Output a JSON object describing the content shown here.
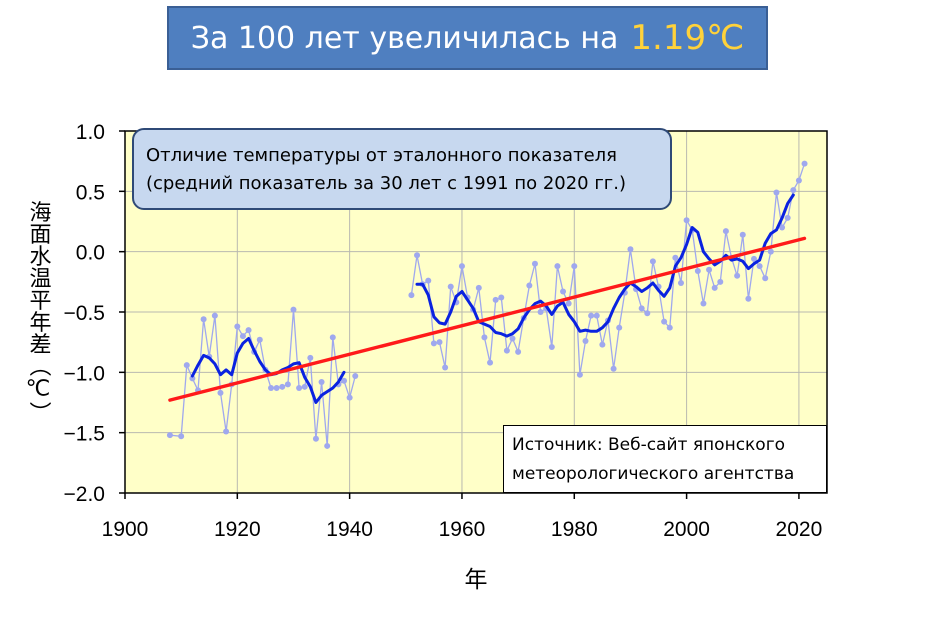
{
  "banner": {
    "text": "За 100 лет увеличилась на",
    "highlight": "1.19℃",
    "highlight_color": "#ffd23a",
    "background_color": "#4f7fc0"
  },
  "callout": {
    "line1": "Отличие температуры от эталонного показателя",
    "line2": "(средний показатель за 30 лет с 1991 по 2020 гг.)"
  },
  "source": {
    "line1": "Источник: Веб-сайт японского",
    "line2": "метеорологического агентства"
  },
  "chart_data": {
    "type": "line",
    "xlabel": "年",
    "ylabel": "海面水温平年差（℃）",
    "xlim": [
      1900,
      2025
    ],
    "ylim": [
      -2.0,
      1.0
    ],
    "xticks": [
      1900,
      1920,
      1940,
      1960,
      1980,
      2000,
      2020
    ],
    "xtick_labels": [
      "1900",
      "1920",
      "1940",
      "1960",
      "1980",
      "2000",
      "2020"
    ],
    "yticks": [
      -2.0,
      -1.5,
      -1.0,
      -0.5,
      0.0,
      0.5,
      1.0
    ],
    "ytick_labels": [
      "−2.0",
      "−1.5",
      "−1.0",
      "−0.5",
      "0.0",
      "0.5",
      "1.0"
    ],
    "grid": true,
    "plot_background": "#ffffc8",
    "series": [
      {
        "color": "#9fa8ee",
        "style": "thin-line-with-dots",
        "segments": [
          {
            "x": [
              1908,
              1910,
              1911,
              1912,
              1913,
              1914,
              1915,
              1916,
              1917,
              1918,
              1919,
              1920,
              1921,
              1922,
              1923,
              1924,
              1925,
              1926,
              1927,
              1928,
              1929,
              1930,
              1931,
              1932,
              1933,
              1934,
              1935,
              1936,
              1937,
              1938,
              1939,
              1940,
              1941
            ],
            "y": [
              -1.52,
              -1.53,
              -0.94,
              -1.05,
              -1.15,
              -0.56,
              -0.87,
              -0.53,
              -1.17,
              -1.49,
              -1.1,
              -0.62,
              -0.7,
              -0.65,
              -0.83,
              -0.73,
              -0.98,
              -1.13,
              -1.13,
              -1.12,
              -1.1,
              -0.48,
              -1.13,
              -1.12,
              -0.88,
              -1.55,
              -1.08,
              -1.61,
              -0.71,
              -1.1,
              -1.07,
              -1.21,
              -1.03
            ]
          },
          {
            "x": [
              1951,
              1952,
              1953,
              1954,
              1955,
              1956,
              1957,
              1958,
              1959,
              1960,
              1961,
              1962,
              1963,
              1964,
              1965,
              1966,
              1967,
              1968,
              1969,
              1970,
              1971,
              1972,
              1973,
              1974,
              1975,
              1976,
              1977,
              1978,
              1979,
              1980,
              1981,
              1982,
              1983,
              1984,
              1985,
              1986,
              1987,
              1988,
              1989,
              1990,
              1991,
              1992,
              1993,
              1994,
              1995,
              1996,
              1997,
              1998,
              1999,
              2000,
              2001,
              2002,
              2003,
              2004,
              2005,
              2006,
              2007,
              2008,
              2009,
              2010,
              2011,
              2012,
              2013,
              2014,
              2015,
              2016,
              2017,
              2018,
              2019,
              2020,
              2021
            ],
            "y": [
              -0.36,
              -0.03,
              -0.27,
              -0.24,
              -0.76,
              -0.75,
              -0.96,
              -0.29,
              -0.42,
              -0.12,
              -0.38,
              -0.48,
              -0.3,
              -0.71,
              -0.92,
              -0.4,
              -0.38,
              -0.82,
              -0.72,
              -0.83,
              -0.55,
              -0.28,
              -0.1,
              -0.5,
              -0.47,
              -0.79,
              -0.12,
              -0.33,
              -0.43,
              -0.12,
              -1.02,
              -0.74,
              -0.53,
              -0.53,
              -0.77,
              -0.57,
              -0.97,
              -0.63,
              -0.34,
              0.02,
              -0.31,
              -0.47,
              -0.51,
              -0.08,
              -0.29,
              -0.58,
              -0.63,
              -0.05,
              -0.26,
              0.26,
              0.18,
              -0.16,
              -0.43,
              -0.15,
              -0.3,
              -0.25,
              0.17,
              -0.05,
              -0.2,
              0.14,
              -0.39,
              -0.06,
              -0.12,
              -0.22,
              0.0,
              0.49,
              0.2,
              0.28,
              0.51,
              0.59,
              0.73
            ]
          }
        ]
      },
      {
        "color": "#0a22e0",
        "style": "thick-line",
        "segments": [
          {
            "x": [
              1912,
              1913,
              1914,
              1915,
              1916,
              1917,
              1918,
              1919,
              1920,
              1921,
              1922,
              1923,
              1924,
              1925,
              1926,
              1927,
              1928,
              1929,
              1930,
              1931,
              1932,
              1933,
              1934,
              1935,
              1936,
              1937,
              1938,
              1939
            ],
            "y": [
              -1.03,
              -0.94,
              -0.86,
              -0.88,
              -0.93,
              -1.02,
              -0.98,
              -1.02,
              -0.84,
              -0.76,
              -0.72,
              -0.82,
              -0.91,
              -0.98,
              -1.02,
              -1.01,
              -0.98,
              -0.96,
              -0.93,
              -0.92,
              -1.04,
              -1.12,
              -1.25,
              -1.19,
              -1.16,
              -1.13,
              -1.08,
              -1.0
            ]
          },
          {
            "x": [
              1952,
              1953,
              1954,
              1955,
              1956,
              1957,
              1958,
              1959,
              1960,
              1961,
              1962,
              1963,
              1964,
              1965,
              1966,
              1967,
              1968,
              1969,
              1970,
              1971,
              1972,
              1973,
              1974,
              1975,
              1976,
              1977,
              1978,
              1979,
              1980,
              1981,
              1982,
              1983,
              1984,
              1985,
              1986,
              1987,
              1988,
              1989,
              1990,
              1991,
              1992,
              1993,
              1994,
              1995,
              1996,
              1997,
              1998,
              1999,
              2000,
              2001,
              2002,
              2003,
              2004,
              2005,
              2006,
              2007,
              2008,
              2009,
              2010,
              2011,
              2012,
              2013,
              2014,
              2015,
              2016,
              2017,
              2018,
              2019
            ],
            "y": [
              -0.27,
              -0.27,
              -0.36,
              -0.54,
              -0.59,
              -0.6,
              -0.5,
              -0.37,
              -0.33,
              -0.4,
              -0.47,
              -0.58,
              -0.6,
              -0.62,
              -0.67,
              -0.68,
              -0.7,
              -0.68,
              -0.64,
              -0.55,
              -0.48,
              -0.43,
              -0.41,
              -0.45,
              -0.52,
              -0.45,
              -0.42,
              -0.52,
              -0.58,
              -0.66,
              -0.65,
              -0.66,
              -0.66,
              -0.63,
              -0.58,
              -0.47,
              -0.38,
              -0.31,
              -0.26,
              -0.29,
              -0.33,
              -0.3,
              -0.26,
              -0.32,
              -0.37,
              -0.3,
              -0.12,
              -0.05,
              0.06,
              0.2,
              0.16,
              0.0,
              -0.06,
              -0.11,
              -0.08,
              -0.03,
              -0.07,
              -0.06,
              -0.08,
              -0.14,
              -0.1,
              -0.07,
              0.07,
              0.15,
              0.18,
              0.28,
              0.4,
              0.47
            ]
          }
        ]
      },
      {
        "color": "#ff1a1a",
        "style": "trend-line",
        "segments": [
          {
            "x": [
              1908,
              2021
            ],
            "y": [
              -1.23,
              0.11
            ]
          }
        ]
      }
    ]
  }
}
